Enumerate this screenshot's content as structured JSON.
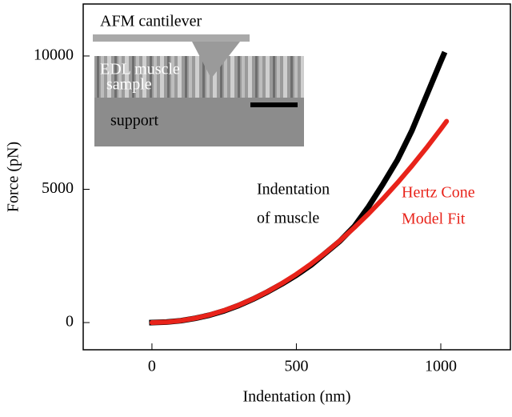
{
  "chart_data": {
    "type": "line",
    "xlabel": "Indentation (nm)",
    "ylabel": "Force (pN)",
    "xlim": [
      -238,
      1241
    ],
    "ylim": [
      -1020,
      11950
    ],
    "xticks": [
      0,
      500,
      1000
    ],
    "yticks": [
      0,
      5000,
      10000
    ],
    "annotations": [
      "AFM cantilever",
      "EDL muscle",
      "sample",
      "support",
      "Indentation",
      "of muscle",
      "Hertz Cone",
      "Model Fit"
    ],
    "annotation_colors": [
      "#000000",
      "#ffffff",
      "#ffffff",
      "#000000",
      "#000000",
      "#000000",
      "#e8231a",
      "#e8231a"
    ],
    "series": [
      {
        "color": "#000000",
        "x": [
          0,
          50,
          100,
          150,
          200,
          250,
          300,
          350,
          400,
          450,
          500,
          550,
          600,
          650,
          700,
          750,
          800,
          850,
          900,
          950,
          1000,
          1010
        ],
        "values": [
          0,
          20,
          70,
          160,
          280,
          440,
          640,
          880,
          1150,
          1450,
          1780,
          2150,
          2600,
          3050,
          3600,
          4350,
          5200,
          6100,
          7200,
          8500,
          9800,
          10050
        ]
      },
      {
        "color": "#e8231a",
        "x": [
          0,
          50,
          100,
          150,
          200,
          250,
          300,
          350,
          400,
          450,
          500,
          550,
          600,
          650,
          700,
          750,
          800,
          850,
          900,
          950,
          1000,
          1020
        ],
        "values": [
          0,
          18,
          73,
          163,
          290,
          454,
          653,
          889,
          1161,
          1470,
          1814,
          2195,
          2613,
          3066,
          3556,
          4082,
          4644,
          5243,
          5878,
          6549,
          7257,
          7550
        ]
      }
    ]
  }
}
